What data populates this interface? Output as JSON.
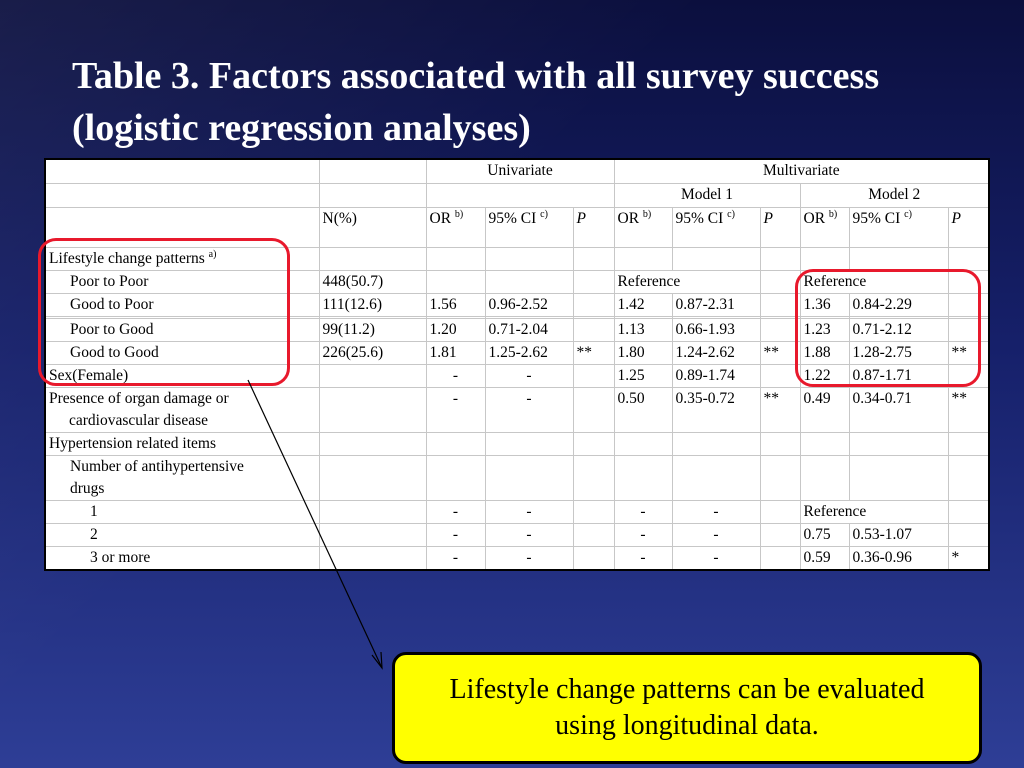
{
  "title": "Table 3. Factors associated with all survey success (logistic regression analyses)",
  "header": {
    "univariate": "Univariate",
    "multivariate": "Multivariate",
    "model1": "Model 1",
    "model2": "Model 2",
    "n_pct": "N(%)",
    "or": "OR",
    "or_sup": "b)",
    "ci": "95% CI",
    "ci_sup": "c)",
    "p": "P"
  },
  "rows": {
    "lcp": {
      "label": "Lifestyle change patterns",
      "sup": "a)"
    },
    "ptp": {
      "label": "Poor to Poor",
      "n": "448(50.7)",
      "m1_ref": "Reference",
      "m2_ref": "Reference"
    },
    "gtp": {
      "label": "Good to Poor",
      "n": "111(12.6)",
      "u_or": "1.56",
      "u_ci": "0.96-2.52",
      "m1_or": "1.42",
      "m1_ci": "0.87-2.31",
      "m2_or": "1.36",
      "m2_ci": "0.84-2.29"
    },
    "ptg": {
      "label": "Poor to Good",
      "n": "99(11.2)",
      "u_or": "1.20",
      "u_ci": "0.71-2.04",
      "m1_or": "1.13",
      "m1_ci": "0.66-1.93",
      "m2_or": "1.23",
      "m2_ci": "0.71-2.12"
    },
    "gtg": {
      "label": "Good to Good",
      "n": "226(25.6)",
      "u_or": "1.81",
      "u_ci": "1.25-2.62",
      "u_p": "**",
      "m1_or": "1.80",
      "m1_ci": "1.24-2.62",
      "m1_p": "**",
      "m2_or": "1.88",
      "m2_ci": "1.28-2.75",
      "m2_p": "**"
    },
    "sex": {
      "label": "Sex(Female)",
      "u_or": "-",
      "u_ci": "-",
      "m1_or": "1.25",
      "m1_ci": "0.89-1.74",
      "m2_or": "1.22",
      "m2_ci": "0.87-1.71"
    },
    "organ": {
      "label_line1": "Presence of organ damage or",
      "label_line2": "cardiovascular disease",
      "u_or": "-",
      "u_ci": "-",
      "m1_or": "0.50",
      "m1_ci": "0.35-0.72",
      "m1_p": "**",
      "m2_or": "0.49",
      "m2_ci": "0.34-0.71",
      "m2_p": "**"
    },
    "htn": {
      "label": "Hypertension related items"
    },
    "nad": {
      "label_line1": "Number of antihypertensive",
      "label_line2": "drugs"
    },
    "d1": {
      "label": "1",
      "u_or": "-",
      "u_ci": "-",
      "m1_or": "-",
      "m1_ci": "-",
      "m2_ref": "Reference"
    },
    "d2": {
      "label": "2",
      "u_or": "-",
      "u_ci": "-",
      "m1_or": "-",
      "m1_ci": "-",
      "m2_or": "0.75",
      "m2_ci": "0.53-1.07"
    },
    "d3": {
      "label": "3 or more",
      "u_or": "-",
      "u_ci": "-",
      "m1_or": "-",
      "m1_ci": "-",
      "m2_or": "0.59",
      "m2_ci": "0.36-0.96",
      "m2_p": "*"
    }
  },
  "callout": "Lifestyle change patterns can be evaluated using longitudinal data.",
  "colors": {
    "highlight": "#e8192c",
    "callout_bg": "#ffff00",
    "title": "#ffffff"
  }
}
